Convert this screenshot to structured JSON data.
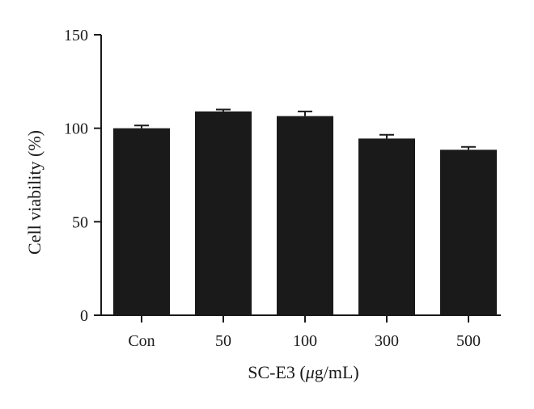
{
  "chart_data": {
    "type": "bar",
    "categories": [
      "Con",
      "50",
      "100",
      "300",
      "500"
    ],
    "values": [
      100,
      109,
      106.5,
      94.5,
      88.5
    ],
    "errors": [
      1.5,
      1,
      2.5,
      2,
      1.5
    ],
    "xlabel_prefix": "SC-E3 (",
    "xlabel_italic": "μ",
    "xlabel_suffix": "g/mL)",
    "ylabel": "Cell viability (%)",
    "ylim": [
      0,
      150
    ],
    "yticks": [
      0,
      50,
      100,
      150
    ],
    "bar_color": "#1a1a1a",
    "grid": false,
    "legend": "none"
  }
}
